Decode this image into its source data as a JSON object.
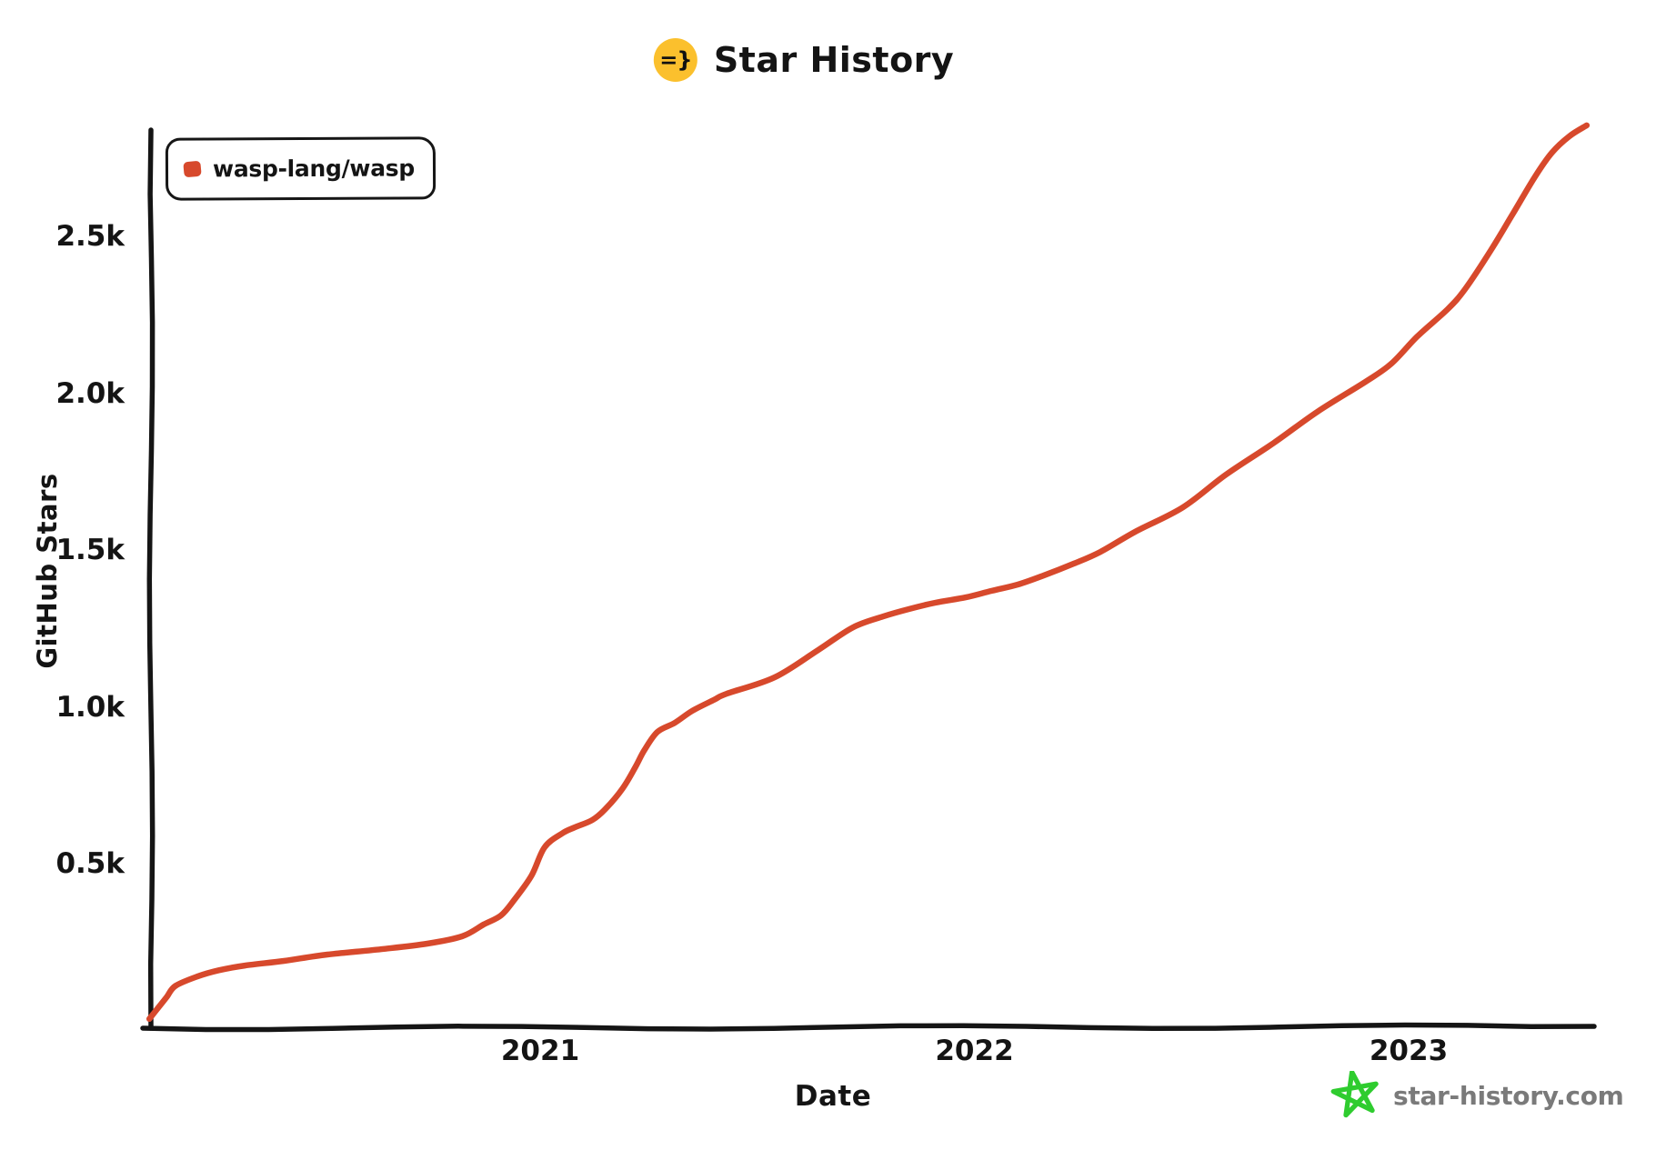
{
  "title": {
    "text": "Star History",
    "icon": "star-history-logo-icon",
    "icon_text": "=}"
  },
  "legend": {
    "items": [
      {
        "label": "wasp-lang/wasp",
        "color": "#d7492c"
      }
    ]
  },
  "footer": {
    "site": "star-history.com",
    "icon": "green-star-icon",
    "text_color": "#7a7a7a",
    "star_color": "#2fcc2f"
  },
  "colors": {
    "line": "#d7492c",
    "axis": "#151515",
    "logo_badge_bg": "#fbc02d",
    "background": "#ffffff"
  },
  "chart_data": {
    "type": "line",
    "title": "Star History",
    "xlabel": "Date",
    "ylabel": "GitHub Stars",
    "grid": false,
    "legend_position": "top-left",
    "xlim": [
      2020.08,
      2023.45
    ],
    "ylim": [
      0,
      2870
    ],
    "xticks": [
      {
        "label": "2021",
        "value": 2021
      },
      {
        "label": "2022",
        "value": 2022
      },
      {
        "label": "2023",
        "value": 2023
      }
    ],
    "yticks": [
      {
        "label": "0.5k",
        "value": 500
      },
      {
        "label": "1.0k",
        "value": 1000
      },
      {
        "label": "1.5k",
        "value": 1500
      },
      {
        "label": "2.0k",
        "value": 2000
      },
      {
        "label": "2.5k",
        "value": 2500
      }
    ],
    "series": [
      {
        "name": "wasp-lang/wasp",
        "color": "#d7492c",
        "x_unit": "year-fraction",
        "y_unit": "github-stars",
        "points": [
          [
            2020.1,
            5
          ],
          [
            2020.12,
            40
          ],
          [
            2020.14,
            75
          ],
          [
            2020.16,
            110
          ],
          [
            2020.21,
            140
          ],
          [
            2020.26,
            160
          ],
          [
            2020.32,
            175
          ],
          [
            2020.41,
            190
          ],
          [
            2020.51,
            210
          ],
          [
            2020.64,
            228
          ],
          [
            2020.74,
            245
          ],
          [
            2020.82,
            268
          ],
          [
            2020.87,
            306
          ],
          [
            2020.91,
            335
          ],
          [
            2020.94,
            384
          ],
          [
            2020.98,
            462
          ],
          [
            2021.01,
            552
          ],
          [
            2021.05,
            596
          ],
          [
            2021.08,
            616
          ],
          [
            2021.12,
            639
          ],
          [
            2021.15,
            674
          ],
          [
            2021.19,
            740
          ],
          [
            2021.22,
            810
          ],
          [
            2021.24,
            862
          ],
          [
            2021.27,
            920
          ],
          [
            2021.31,
            949
          ],
          [
            2021.35,
            987
          ],
          [
            2021.4,
            1022
          ],
          [
            2021.43,
            1042
          ],
          [
            2021.54,
            1094
          ],
          [
            2021.64,
            1181
          ],
          [
            2021.72,
            1253
          ],
          [
            2021.79,
            1288
          ],
          [
            2021.85,
            1312
          ],
          [
            2021.91,
            1332
          ],
          [
            2021.98,
            1349
          ],
          [
            2022.04,
            1370
          ],
          [
            2022.1,
            1390
          ],
          [
            2022.16,
            1419
          ],
          [
            2022.23,
            1457
          ],
          [
            2022.29,
            1494
          ],
          [
            2022.37,
            1558
          ],
          [
            2022.48,
            1636
          ],
          [
            2022.58,
            1741
          ],
          [
            2022.69,
            1842
          ],
          [
            2022.79,
            1941
          ],
          [
            2022.9,
            2036
          ],
          [
            2022.96,
            2094
          ],
          [
            2023.02,
            2181
          ],
          [
            2023.09,
            2268
          ],
          [
            2023.13,
            2332
          ],
          [
            2023.19,
            2457
          ],
          [
            2023.24,
            2572
          ],
          [
            2023.29,
            2688
          ],
          [
            2023.33,
            2767
          ],
          [
            2023.37,
            2819
          ],
          [
            2023.41,
            2854
          ]
        ]
      }
    ]
  }
}
